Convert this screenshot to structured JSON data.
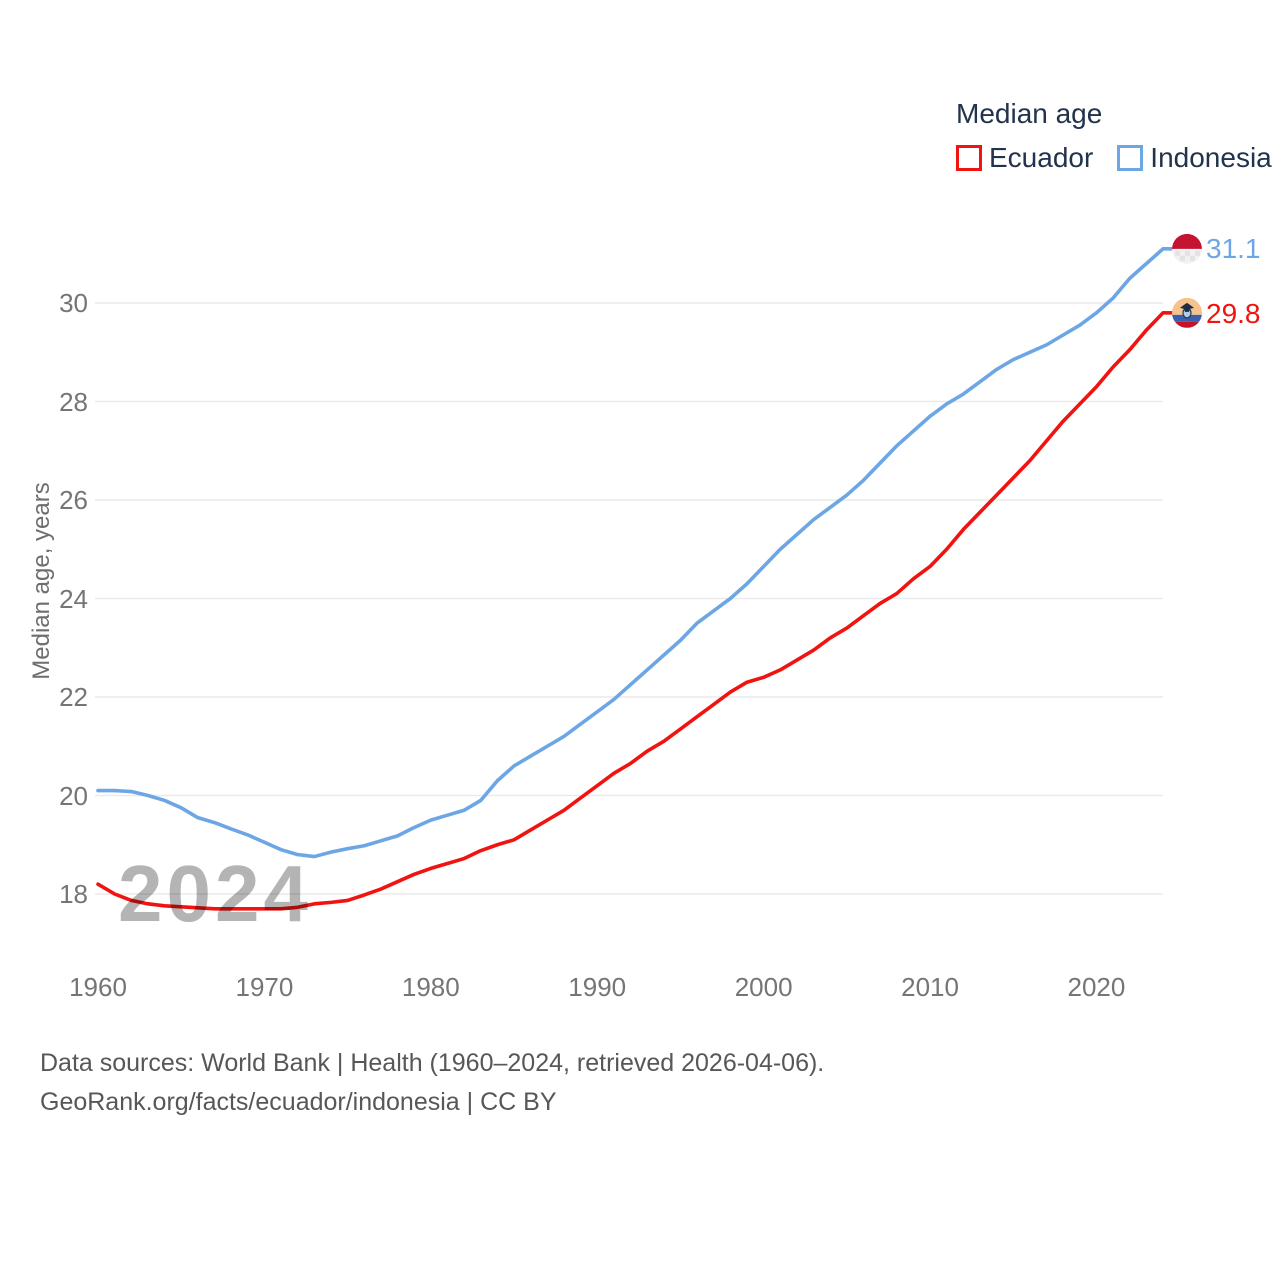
{
  "legend": {
    "title": "Median age",
    "items": [
      {
        "label": "Ecuador",
        "color": "#f01310"
      },
      {
        "label": "Indonesia",
        "color": "#6ca6e4"
      }
    ]
  },
  "y_axis_title": "Median age, years",
  "watermark": "2024",
  "end_labels": {
    "indonesia": {
      "value": "31.1",
      "color": "#6ca6e4"
    },
    "ecuador": {
      "value": "29.8",
      "color": "#f01310"
    }
  },
  "footer": {
    "line1": "Data sources: World Bank | Health (1960–2024, retrieved 2026-04-06).",
    "line2": "GeoRank.org/facts/ecuador/indonesia | CC BY"
  },
  "chart_data": {
    "type": "line",
    "title": "Median age",
    "xlabel": "",
    "ylabel": "Median age, years",
    "xlim": [
      1960,
      2024
    ],
    "ylim": [
      17.3,
      31.6
    ],
    "xticks": [
      1960,
      1970,
      1980,
      1990,
      2000,
      2010,
      2020
    ],
    "yticks": [
      18,
      20,
      22,
      24,
      26,
      28,
      30
    ],
    "grid": true,
    "legend_position": "top-right",
    "x": [
      1960,
      1961,
      1962,
      1963,
      1964,
      1965,
      1966,
      1967,
      1968,
      1969,
      1970,
      1971,
      1972,
      1973,
      1974,
      1975,
      1976,
      1977,
      1978,
      1979,
      1980,
      1981,
      1982,
      1983,
      1984,
      1985,
      1986,
      1987,
      1988,
      1989,
      1990,
      1991,
      1992,
      1993,
      1994,
      1995,
      1996,
      1997,
      1998,
      1999,
      2000,
      2001,
      2002,
      2003,
      2004,
      2005,
      2006,
      2007,
      2008,
      2009,
      2010,
      2011,
      2012,
      2013,
      2014,
      2015,
      2016,
      2017,
      2018,
      2019,
      2020,
      2021,
      2022,
      2023,
      2024
    ],
    "series": [
      {
        "name": "Ecuador",
        "color": "#f01310",
        "end_value": 29.8,
        "values": [
          18.2,
          18.0,
          17.87,
          17.8,
          17.76,
          17.74,
          17.72,
          17.7,
          17.7,
          17.7,
          17.7,
          17.7,
          17.73,
          17.8,
          17.83,
          17.87,
          17.98,
          18.1,
          18.25,
          18.4,
          18.52,
          18.62,
          18.72,
          18.88,
          19.0,
          19.1,
          19.3,
          19.5,
          19.7,
          19.95,
          20.2,
          20.45,
          20.65,
          20.9,
          21.1,
          21.35,
          21.6,
          21.85,
          22.1,
          22.3,
          22.4,
          22.55,
          22.75,
          22.95,
          23.2,
          23.4,
          23.65,
          23.9,
          24.1,
          24.4,
          24.65,
          25.0,
          25.4,
          25.75,
          26.1,
          26.45,
          26.8,
          27.2,
          27.6,
          27.95,
          28.3,
          28.7,
          29.05,
          29.45,
          29.8
        ]
      },
      {
        "name": "Indonesia",
        "color": "#6ca6e4",
        "end_value": 31.1,
        "values": [
          20.1,
          20.1,
          20.08,
          20.0,
          19.9,
          19.75,
          19.55,
          19.45,
          19.32,
          19.2,
          19.05,
          18.9,
          18.8,
          18.76,
          18.85,
          18.92,
          18.98,
          19.08,
          19.18,
          19.35,
          19.5,
          19.6,
          19.7,
          19.9,
          20.3,
          20.6,
          20.8,
          21.0,
          21.2,
          21.45,
          21.7,
          21.95,
          22.25,
          22.55,
          22.85,
          23.15,
          23.5,
          23.75,
          24.0,
          24.3,
          24.65,
          25.0,
          25.3,
          25.6,
          25.85,
          26.1,
          26.4,
          26.75,
          27.1,
          27.4,
          27.7,
          27.95,
          28.15,
          28.4,
          28.65,
          28.85,
          29.0,
          29.15,
          29.35,
          29.55,
          29.8,
          30.1,
          30.5,
          30.8,
          31.1
        ]
      }
    ]
  }
}
